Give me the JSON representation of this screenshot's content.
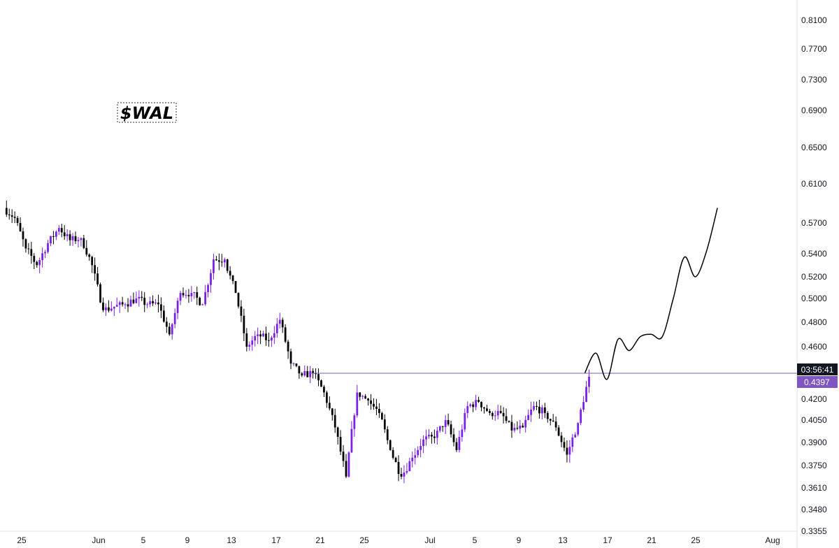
{
  "chart_data": {
    "type": "candlestick",
    "title": "$WAL",
    "xlabel": "",
    "ylabel": "",
    "y_axis_ticks": [
      "0.8100",
      "0.7700",
      "0.7300",
      "0.6900",
      "0.6500",
      "0.6100",
      "0.5700",
      "0.5400",
      "0.5200",
      "0.5000",
      "0.4800",
      "0.4600",
      "0.4397",
      "0.4200",
      "0.4050",
      "0.3900",
      "0.3750",
      "0.3610",
      "0.3480",
      "0.3355"
    ],
    "x_axis_ticks": [
      "25",
      "Jun",
      "5",
      "9",
      "13",
      "17",
      "21",
      "25",
      "Jul",
      "5",
      "9",
      "13",
      "17",
      "21",
      "25",
      "Aug"
    ],
    "y_scale": "log",
    "ylim": [
      0.3355,
      0.84
    ],
    "price_level": 0.4397,
    "countdown": "03:56:41",
    "current_price_label": "0.4397",
    "colors": {
      "up": "#7b1fe8",
      "down": "#000000",
      "level": "#7e57c2",
      "badge": "#7e57c2",
      "timer": "#131722"
    },
    "ohlc_bars_per_day": 4,
    "daily_close": [
      {
        "date": "05-24",
        "close": 0.575
      },
      {
        "date": "05-25",
        "close": 0.545
      },
      {
        "date": "05-26",
        "close": 0.53
      },
      {
        "date": "05-27",
        "close": 0.55
      },
      {
        "date": "05-28",
        "close": 0.565
      },
      {
        "date": "05-29",
        "close": 0.553
      },
      {
        "date": "05-30",
        "close": 0.555
      },
      {
        "date": "05-31",
        "close": 0.53
      },
      {
        "date": "06-01",
        "close": 0.49
      },
      {
        "date": "06-02",
        "close": 0.493
      },
      {
        "date": "06-03",
        "close": 0.495
      },
      {
        "date": "06-04",
        "close": 0.5
      },
      {
        "date": "06-05",
        "close": 0.495
      },
      {
        "date": "06-06",
        "close": 0.495
      },
      {
        "date": "06-07",
        "close": 0.47
      },
      {
        "date": "06-08",
        "close": 0.505
      },
      {
        "date": "06-09",
        "close": 0.505
      },
      {
        "date": "06-10",
        "close": 0.495
      },
      {
        "date": "06-11",
        "close": 0.535
      },
      {
        "date": "06-12",
        "close": 0.535
      },
      {
        "date": "06-13",
        "close": 0.505
      },
      {
        "date": "06-14",
        "close": 0.46
      },
      {
        "date": "06-15",
        "close": 0.47
      },
      {
        "date": "06-16",
        "close": 0.465
      },
      {
        "date": "06-17",
        "close": 0.482
      },
      {
        "date": "06-18",
        "close": 0.447
      },
      {
        "date": "06-19",
        "close": 0.438
      },
      {
        "date": "06-20",
        "close": 0.44
      },
      {
        "date": "06-21",
        "close": 0.425
      },
      {
        "date": "06-22",
        "close": 0.4
      },
      {
        "date": "06-23",
        "close": 0.368
      },
      {
        "date": "06-24",
        "close": 0.425
      },
      {
        "date": "06-25",
        "close": 0.419
      },
      {
        "date": "06-26",
        "close": 0.41
      },
      {
        "date": "06-27",
        "close": 0.385
      },
      {
        "date": "06-28",
        "close": 0.368
      },
      {
        "date": "06-29",
        "close": 0.38
      },
      {
        "date": "06-30",
        "close": 0.392
      },
      {
        "date": "07-01",
        "close": 0.393
      },
      {
        "date": "07-02",
        "close": 0.405
      },
      {
        "date": "07-03",
        "close": 0.385
      },
      {
        "date": "07-04",
        "close": 0.415
      },
      {
        "date": "07-05",
        "close": 0.418
      },
      {
        "date": "07-06",
        "close": 0.41
      },
      {
        "date": "07-07",
        "close": 0.41
      },
      {
        "date": "07-08",
        "close": 0.398
      },
      {
        "date": "07-09",
        "close": 0.4
      },
      {
        "date": "07-10",
        "close": 0.415
      },
      {
        "date": "07-11",
        "close": 0.41
      },
      {
        "date": "07-12",
        "close": 0.4
      },
      {
        "date": "07-13",
        "close": 0.382
      },
      {
        "date": "07-14",
        "close": 0.403
      },
      {
        "date": "07-15",
        "close": 0.437
      }
    ],
    "projection_path": [
      {
        "date": "07-15",
        "value": 0.44
      },
      {
        "date": "07-16",
        "value": 0.455
      },
      {
        "date": "07-17",
        "value": 0.435
      },
      {
        "date": "07-18",
        "value": 0.466
      },
      {
        "date": "07-19",
        "value": 0.457
      },
      {
        "date": "07-20",
        "value": 0.468
      },
      {
        "date": "07-21",
        "value": 0.47
      },
      {
        "date": "07-22",
        "value": 0.468
      },
      {
        "date": "07-23",
        "value": 0.5
      },
      {
        "date": "07-24",
        "value": 0.537
      },
      {
        "date": "07-25",
        "value": 0.52
      },
      {
        "date": "07-26",
        "value": 0.542
      },
      {
        "date": "07-27",
        "value": 0.585
      }
    ]
  }
}
